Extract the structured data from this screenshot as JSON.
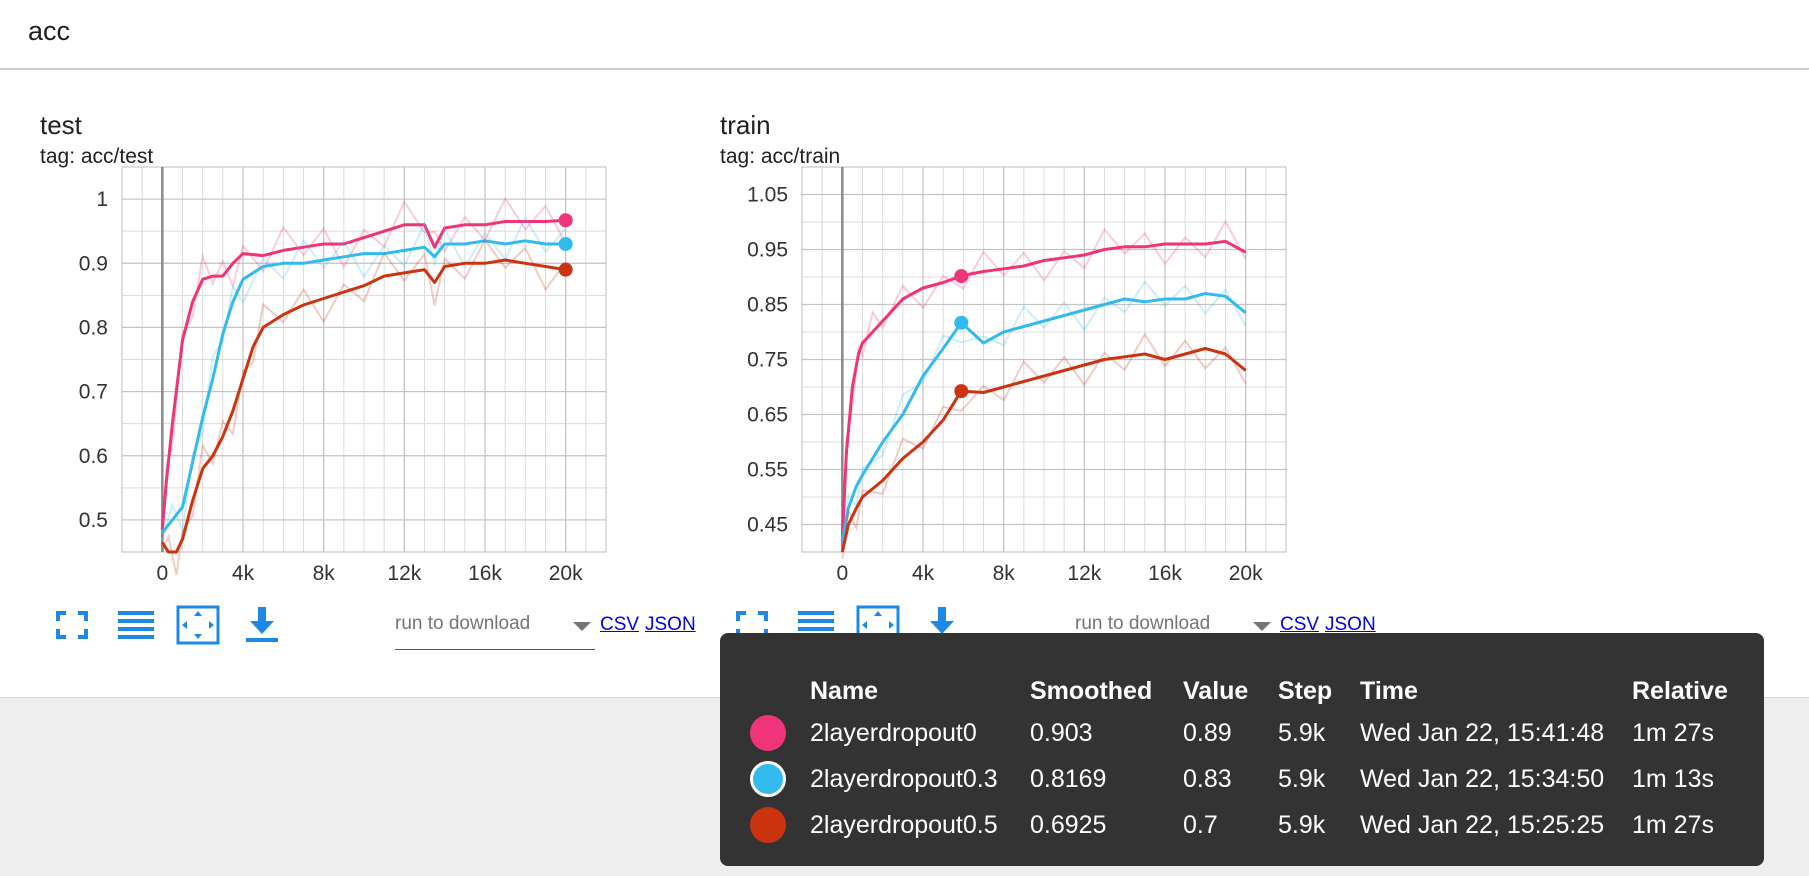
{
  "header": {
    "title": "acc"
  },
  "toolbar": {
    "run_placeholder": "run to download",
    "csv_label": "CSV",
    "json_label": "JSON"
  },
  "chart_data": [
    {
      "type": "line",
      "title": "test",
      "subtitle": "tag: acc/test",
      "xlim": [
        -2000,
        22000
      ],
      "ylim": [
        0.45,
        1.05
      ],
      "xticks": [
        0,
        4000,
        8000,
        12000,
        16000,
        20000
      ],
      "xtick_labels": [
        "0",
        "4k",
        "8k",
        "12k",
        "16k",
        "20k"
      ],
      "yticks": [
        0.5,
        0.6,
        0.7,
        0.8,
        0.9,
        1.0
      ],
      "ytick_labels": [
        "0.5",
        "0.6",
        "0.7",
        "0.8",
        "0.9",
        "1"
      ],
      "grid": true,
      "series": [
        {
          "name": "2layerdropout0",
          "color": "#f0347a",
          "x": [
            0,
            200,
            500,
            1000,
            1500,
            2000,
            2500,
            3000,
            3500,
            4000,
            5000,
            6000,
            7000,
            8000,
            9000,
            10000,
            11000,
            12000,
            13000,
            13500,
            14000,
            15000,
            16000,
            17000,
            18000,
            19000,
            20000
          ],
          "y": [
            0.485,
            0.56,
            0.65,
            0.78,
            0.84,
            0.875,
            0.88,
            0.88,
            0.9,
            0.915,
            0.912,
            0.92,
            0.925,
            0.93,
            0.93,
            0.94,
            0.95,
            0.96,
            0.96,
            0.925,
            0.955,
            0.96,
            0.96,
            0.965,
            0.965,
            0.965,
            0.967
          ]
        },
        {
          "name": "2layerdropout0.3",
          "color": "#33bbee",
          "x": [
            0,
            500,
            1000,
            1500,
            2000,
            2500,
            3000,
            3500,
            4000,
            5000,
            6000,
            7000,
            8000,
            9000,
            10000,
            11000,
            12000,
            13000,
            13500,
            14000,
            15000,
            16000,
            17000,
            18000,
            19000,
            20000
          ],
          "y": [
            0.48,
            0.5,
            0.52,
            0.59,
            0.66,
            0.72,
            0.79,
            0.84,
            0.875,
            0.895,
            0.9,
            0.9,
            0.905,
            0.91,
            0.915,
            0.915,
            0.92,
            0.925,
            0.91,
            0.93,
            0.93,
            0.935,
            0.93,
            0.935,
            0.93,
            0.93
          ]
        },
        {
          "name": "2layerdropout0.5",
          "color": "#cc3311",
          "x": [
            0,
            300,
            700,
            1000,
            1500,
            2000,
            2500,
            3000,
            3500,
            4000,
            4500,
            5000,
            6000,
            7000,
            8000,
            9000,
            10000,
            11000,
            12000,
            13000,
            13500,
            14000,
            15000,
            16000,
            17000,
            18000,
            19000,
            20000
          ],
          "y": [
            0.465,
            0.45,
            0.45,
            0.47,
            0.53,
            0.58,
            0.6,
            0.63,
            0.67,
            0.72,
            0.77,
            0.8,
            0.82,
            0.835,
            0.845,
            0.855,
            0.865,
            0.88,
            0.885,
            0.89,
            0.87,
            0.895,
            0.9,
            0.9,
            0.905,
            0.9,
            0.895,
            0.89
          ]
        }
      ]
    },
    {
      "type": "line",
      "title": "train",
      "subtitle": "tag: acc/train",
      "xlim": [
        -2000,
        22000
      ],
      "ylim": [
        0.4,
        1.1
      ],
      "xticks": [
        0,
        4000,
        8000,
        12000,
        16000,
        20000
      ],
      "xtick_labels": [
        "0",
        "4k",
        "8k",
        "12k",
        "16k",
        "20k"
      ],
      "yticks": [
        0.45,
        0.55,
        0.65,
        0.75,
        0.85,
        0.95,
        1.05
      ],
      "ytick_labels": [
        "0.45",
        "0.55",
        "0.65",
        "0.75",
        "0.85",
        "0.95",
        "1.05"
      ],
      "grid": true,
      "series": [
        {
          "name": "2layerdropout0",
          "color": "#f0347a",
          "x": [
            0,
            200,
            500,
            800,
            1000,
            1500,
            2000,
            3000,
            4000,
            5000,
            6000,
            7000,
            8000,
            9000,
            10000,
            11000,
            12000,
            13000,
            14000,
            15000,
            16000,
            17000,
            18000,
            19000,
            20000
          ],
          "y": [
            0.42,
            0.58,
            0.7,
            0.76,
            0.78,
            0.8,
            0.82,
            0.86,
            0.88,
            0.89,
            0.903,
            0.91,
            0.915,
            0.92,
            0.93,
            0.935,
            0.94,
            0.95,
            0.955,
            0.955,
            0.96,
            0.96,
            0.96,
            0.965,
            0.945
          ]
        },
        {
          "name": "2layerdropout0.3",
          "color": "#33bbee",
          "x": [
            0,
            300,
            700,
            1000,
            2000,
            3000,
            4000,
            5000,
            5900,
            7000,
            8000,
            9000,
            10000,
            11000,
            12000,
            13000,
            14000,
            15000,
            16000,
            17000,
            18000,
            19000,
            20000
          ],
          "y": [
            0.42,
            0.48,
            0.52,
            0.54,
            0.6,
            0.65,
            0.72,
            0.77,
            0.8169,
            0.78,
            0.8,
            0.81,
            0.82,
            0.83,
            0.84,
            0.85,
            0.86,
            0.855,
            0.86,
            0.86,
            0.87,
            0.865,
            0.835
          ]
        },
        {
          "name": "2layerdropout0.5",
          "color": "#cc3311",
          "x": [
            0,
            300,
            700,
            1000,
            2000,
            3000,
            4000,
            5000,
            5900,
            7000,
            8000,
            9000,
            10000,
            11000,
            12000,
            13000,
            14000,
            15000,
            16000,
            17000,
            18000,
            19000,
            20000
          ],
          "y": [
            0.4,
            0.45,
            0.48,
            0.5,
            0.53,
            0.57,
            0.6,
            0.64,
            0.6925,
            0.69,
            0.7,
            0.71,
            0.72,
            0.73,
            0.74,
            0.75,
            0.755,
            0.76,
            0.75,
            0.76,
            0.77,
            0.76,
            0.73
          ]
        }
      ]
    }
  ],
  "tooltip": {
    "headers": {
      "name": "Name",
      "smoothed": "Smoothed",
      "value": "Value",
      "step": "Step",
      "time": "Time",
      "relative": "Relative"
    },
    "rows": [
      {
        "color": "#f0347a",
        "name": "2layerdropout0",
        "smoothed": "0.903",
        "value": "0.89",
        "step": "5.9k",
        "time": "Wed Jan 22, 15:41:48",
        "relative": "1m 27s"
      },
      {
        "color": "#33bbee",
        "name": "2layerdropout0.3",
        "smoothed": "0.8169",
        "value": "0.83",
        "step": "5.9k",
        "time": "Wed Jan 22, 15:34:50",
        "relative": "1m 13s"
      },
      {
        "color": "#cc3311",
        "name": "2layerdropout0.5",
        "smoothed": "0.6925",
        "value": "0.7",
        "step": "5.9k",
        "time": "Wed Jan 22, 15:25:25",
        "relative": "1m 27s"
      }
    ]
  },
  "hover_step": 5900
}
